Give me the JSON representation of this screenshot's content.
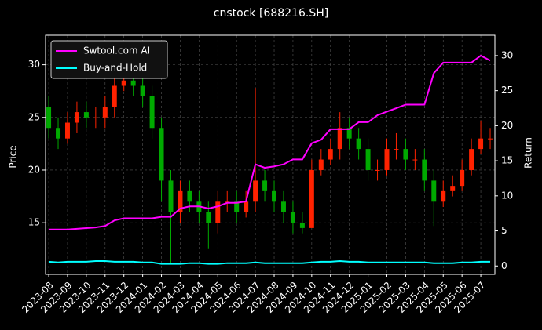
{
  "chart_data": {
    "type": "candlestick",
    "title": "cnstock [688216.SH]",
    "ylabel": "Price",
    "y2label": "Return",
    "x": [
      0,
      0.5,
      1,
      1.5,
      2,
      2.5,
      3,
      3.5,
      4,
      4.5,
      5,
      5.5,
      6,
      6.5,
      7,
      7.5,
      8,
      8.5,
      9,
      9.5,
      10,
      10.5,
      11,
      11.5,
      12,
      12.5,
      13,
      13.5,
      14,
      14.5,
      15,
      15.5,
      16,
      16.5,
      17,
      17.5,
      18,
      18.5,
      19,
      19.5,
      20,
      20.5,
      21,
      21.5,
      22,
      22.5,
      23,
      23.5
    ],
    "xlim": [
      -0.17,
      23.75
    ],
    "xticks": [
      {
        "value": 0,
        "label": "2023-08"
      },
      {
        "value": 1,
        "label": "2023-09"
      },
      {
        "value": 2,
        "label": "2023-10"
      },
      {
        "value": 3,
        "label": "2023-11"
      },
      {
        "value": 4,
        "label": "2023-12"
      },
      {
        "value": 5,
        "label": "2024-01"
      },
      {
        "value": 6,
        "label": "2024-02"
      },
      {
        "value": 7,
        "label": "2024-03"
      },
      {
        "value": 8,
        "label": "2024-04"
      },
      {
        "value": 9,
        "label": "2024-05"
      },
      {
        "value": 10,
        "label": "2024-06"
      },
      {
        "value": 11,
        "label": "2024-07"
      },
      {
        "value": 12,
        "label": "2024-08"
      },
      {
        "value": 13,
        "label": "2024-09"
      },
      {
        "value": 14,
        "label": "2024-10"
      },
      {
        "value": 15,
        "label": "2024-11"
      },
      {
        "value": 16,
        "label": "2024-12"
      },
      {
        "value": 17,
        "label": "2025-01"
      },
      {
        "value": 18,
        "label": "2025-02"
      },
      {
        "value": 19,
        "label": "2025-03"
      },
      {
        "value": 20,
        "label": "2025-04"
      },
      {
        "value": 21,
        "label": "2025-05"
      },
      {
        "value": 22,
        "label": "2025-06"
      },
      {
        "value": 23,
        "label": "2025-07"
      }
    ],
    "ylim": [
      10.1,
      32.8
    ],
    "yticks": [
      15,
      20,
      25,
      30
    ],
    "y2lim": [
      -1.2,
      32.9
    ],
    "y2ticks": [
      0,
      5,
      10,
      15,
      20,
      25,
      30
    ],
    "grid": true,
    "legend": "upper left",
    "up_color": "#ff2200",
    "down_color": "#00aa00",
    "open": [
      26,
      24,
      23,
      24.5,
      25.5,
      25,
      25,
      26,
      28,
      28.5,
      28,
      27,
      24,
      19,
      16,
      18,
      17,
      16,
      15,
      17,
      17,
      16,
      17,
      19,
      18,
      17,
      16,
      15,
      14.5,
      20,
      21,
      22,
      24,
      23,
      22,
      20,
      20,
      22,
      22,
      21,
      21,
      19,
      17,
      18,
      18.5,
      20,
      22,
      23
    ],
    "high": [
      27,
      25,
      25.5,
      26.5,
      26.5,
      26,
      27,
      29,
      29.5,
      29.5,
      29,
      28,
      25,
      20,
      19,
      19,
      18,
      17,
      18,
      18,
      18,
      18,
      27.8,
      20,
      19,
      18,
      17,
      16,
      21,
      22,
      23,
      25.5,
      25,
      24,
      23,
      21,
      23,
      23.5,
      23,
      22,
      22,
      20,
      19,
      19.5,
      21,
      23,
      24.7,
      24
    ],
    "low": [
      23,
      22,
      22.5,
      23.5,
      24,
      24,
      24,
      25,
      27.5,
      27,
      26,
      23,
      17,
      11.2,
      15,
      16,
      15,
      12.5,
      14,
      16,
      15,
      15.5,
      16,
      17,
      16,
      15,
      14,
      14,
      14.5,
      19.5,
      20.5,
      21,
      22,
      21,
      19,
      19,
      19.5,
      21,
      20,
      20,
      18,
      14.7,
      16.5,
      17.5,
      18,
      19.5,
      21.5,
      22
    ],
    "close": [
      24,
      23,
      24.5,
      25.5,
      25,
      25,
      26,
      28,
      28.5,
      28,
      27,
      24,
      19,
      16,
      18,
      17,
      16,
      15,
      17,
      17,
      16,
      17,
      19,
      18,
      17,
      16,
      15,
      14.5,
      20,
      21,
      22,
      24,
      23,
      22,
      20,
      20,
      22,
      22,
      21,
      21,
      19,
      17,
      18,
      18.5,
      20,
      22,
      23,
      23
    ],
    "series": [
      {
        "name": "Swtool.com AI",
        "color": "#ff00ff",
        "axis": "y2",
        "values": [
          5.2,
          5.2,
          5.2,
          5.3,
          5.4,
          5.5,
          5.7,
          6.5,
          6.8,
          6.8,
          6.8,
          6.8,
          7,
          7,
          8.2,
          8.5,
          8.5,
          8.2,
          8.5,
          9,
          9,
          9.2,
          14.5,
          14,
          14.2,
          14.5,
          15.2,
          15.2,
          17.5,
          18,
          19.5,
          19.5,
          19.5,
          20.5,
          20.5,
          21.5,
          22,
          22.5,
          23,
          23,
          23,
          27.5,
          29,
          29,
          29,
          29,
          30,
          29.3
        ]
      },
      {
        "name": "Buy-and-Hold",
        "color": "#00ffff",
        "axis": "y2",
        "values": [
          0.6,
          0.5,
          0.6,
          0.6,
          0.6,
          0.7,
          0.7,
          0.6,
          0.6,
          0.6,
          0.5,
          0.5,
          0.3,
          0.3,
          0.3,
          0.4,
          0.4,
          0.3,
          0.3,
          0.4,
          0.4,
          0.4,
          0.5,
          0.4,
          0.4,
          0.4,
          0.4,
          0.4,
          0.5,
          0.6,
          0.6,
          0.7,
          0.6,
          0.6,
          0.5,
          0.5,
          0.5,
          0.5,
          0.5,
          0.5,
          0.5,
          0.4,
          0.4,
          0.4,
          0.5,
          0.5,
          0.6,
          0.6
        ]
      }
    ]
  }
}
